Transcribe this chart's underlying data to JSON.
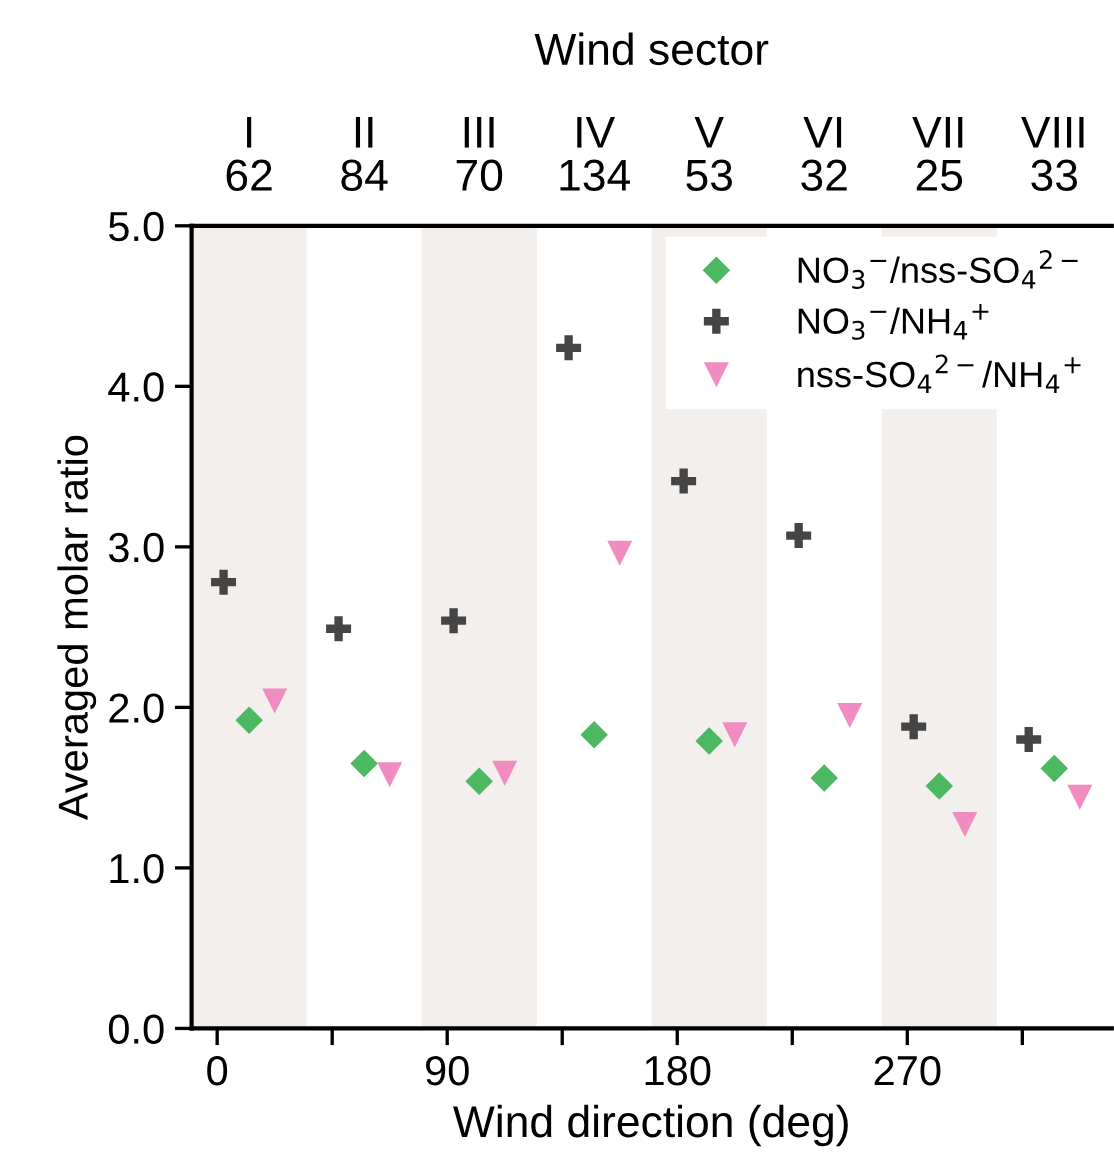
{
  "chart_data": {
    "type": "scatter",
    "title": "Wind sector",
    "xlabel": "Wind direction (deg)",
    "ylabel": "Averaged molar ratio",
    "xlim": [
      -10,
      350
    ],
    "ylim": [
      0,
      5
    ],
    "xticks": [
      0,
      {
        "value": 45,
        "label": null
      },
      90,
      {
        "value": 135,
        "label": null
      },
      180,
      {
        "value": 225,
        "label": null
      },
      270,
      {
        "value": 315,
        "label": null
      }
    ],
    "yticks": [
      {
        "value": 0,
        "label": "0.0"
      },
      {
        "value": 1,
        "label": "1.0"
      },
      {
        "value": 2,
        "label": "2.0"
      },
      {
        "value": 3,
        "label": "3.0"
      },
      {
        "value": 4,
        "label": "4.0"
      },
      {
        "value": 5,
        "label": "5.0"
      }
    ],
    "annotations": [
      "I\n62",
      "II\n84",
      "III\n70",
      "IV\n134",
      "V\n53",
      "VI\n32",
      "VII\n25",
      "VIII\n33"
    ],
    "grid": false,
    "legend": "top right",
    "bands": [
      {
        "axis": "x",
        "from": -10,
        "to": 35,
        "color": "#f2efed"
      },
      {
        "axis": "x",
        "from": 80,
        "to": 125,
        "color": "#f2efed"
      },
      {
        "axis": "x",
        "from": 170,
        "to": 215,
        "color": "#f2efed"
      },
      {
        "axis": "x",
        "from": 260,
        "to": 305,
        "color": "#f2efed"
      }
    ],
    "series": [
      {
        "name": "NO$_{3}$$^{−}$/nss-SO$_{4}$$^{2−}$",
        "color": "#4cb862",
        "marker": "diamond",
        "x": [
          12.5,
          57.5,
          102.5,
          147.5,
          192.5,
          237.5,
          282.5,
          327.5
        ],
        "values": [
          1.92,
          1.65,
          1.54,
          1.83,
          1.79,
          1.56,
          1.51,
          1.62
        ]
      },
      {
        "name": "NO$_{3}$$^{−}$/NH$_{4}$$^{+}$",
        "color": "#454545",
        "marker": "cross",
        "x": [
          2.5,
          47.5,
          92.5,
          137.5,
          182.5,
          227.5,
          272.5,
          317.5
        ],
        "values": [
          2.78,
          2.49,
          2.54,
          4.24,
          3.41,
          3.07,
          1.88,
          1.8
        ]
      },
      {
        "name": "nss-SO$_{4}$$^{2−}$/NH$_{4}$$^{+}$",
        "color": "#f08cbf",
        "marker": "triangle",
        "x": [
          22.5,
          67.5,
          112.5,
          157.5,
          202.5,
          247.5,
          292.5,
          337.5
        ],
        "values": [
          2.04,
          1.58,
          1.59,
          2.96,
          1.83,
          1.95,
          1.27,
          1.44
        ]
      }
    ]
  }
}
